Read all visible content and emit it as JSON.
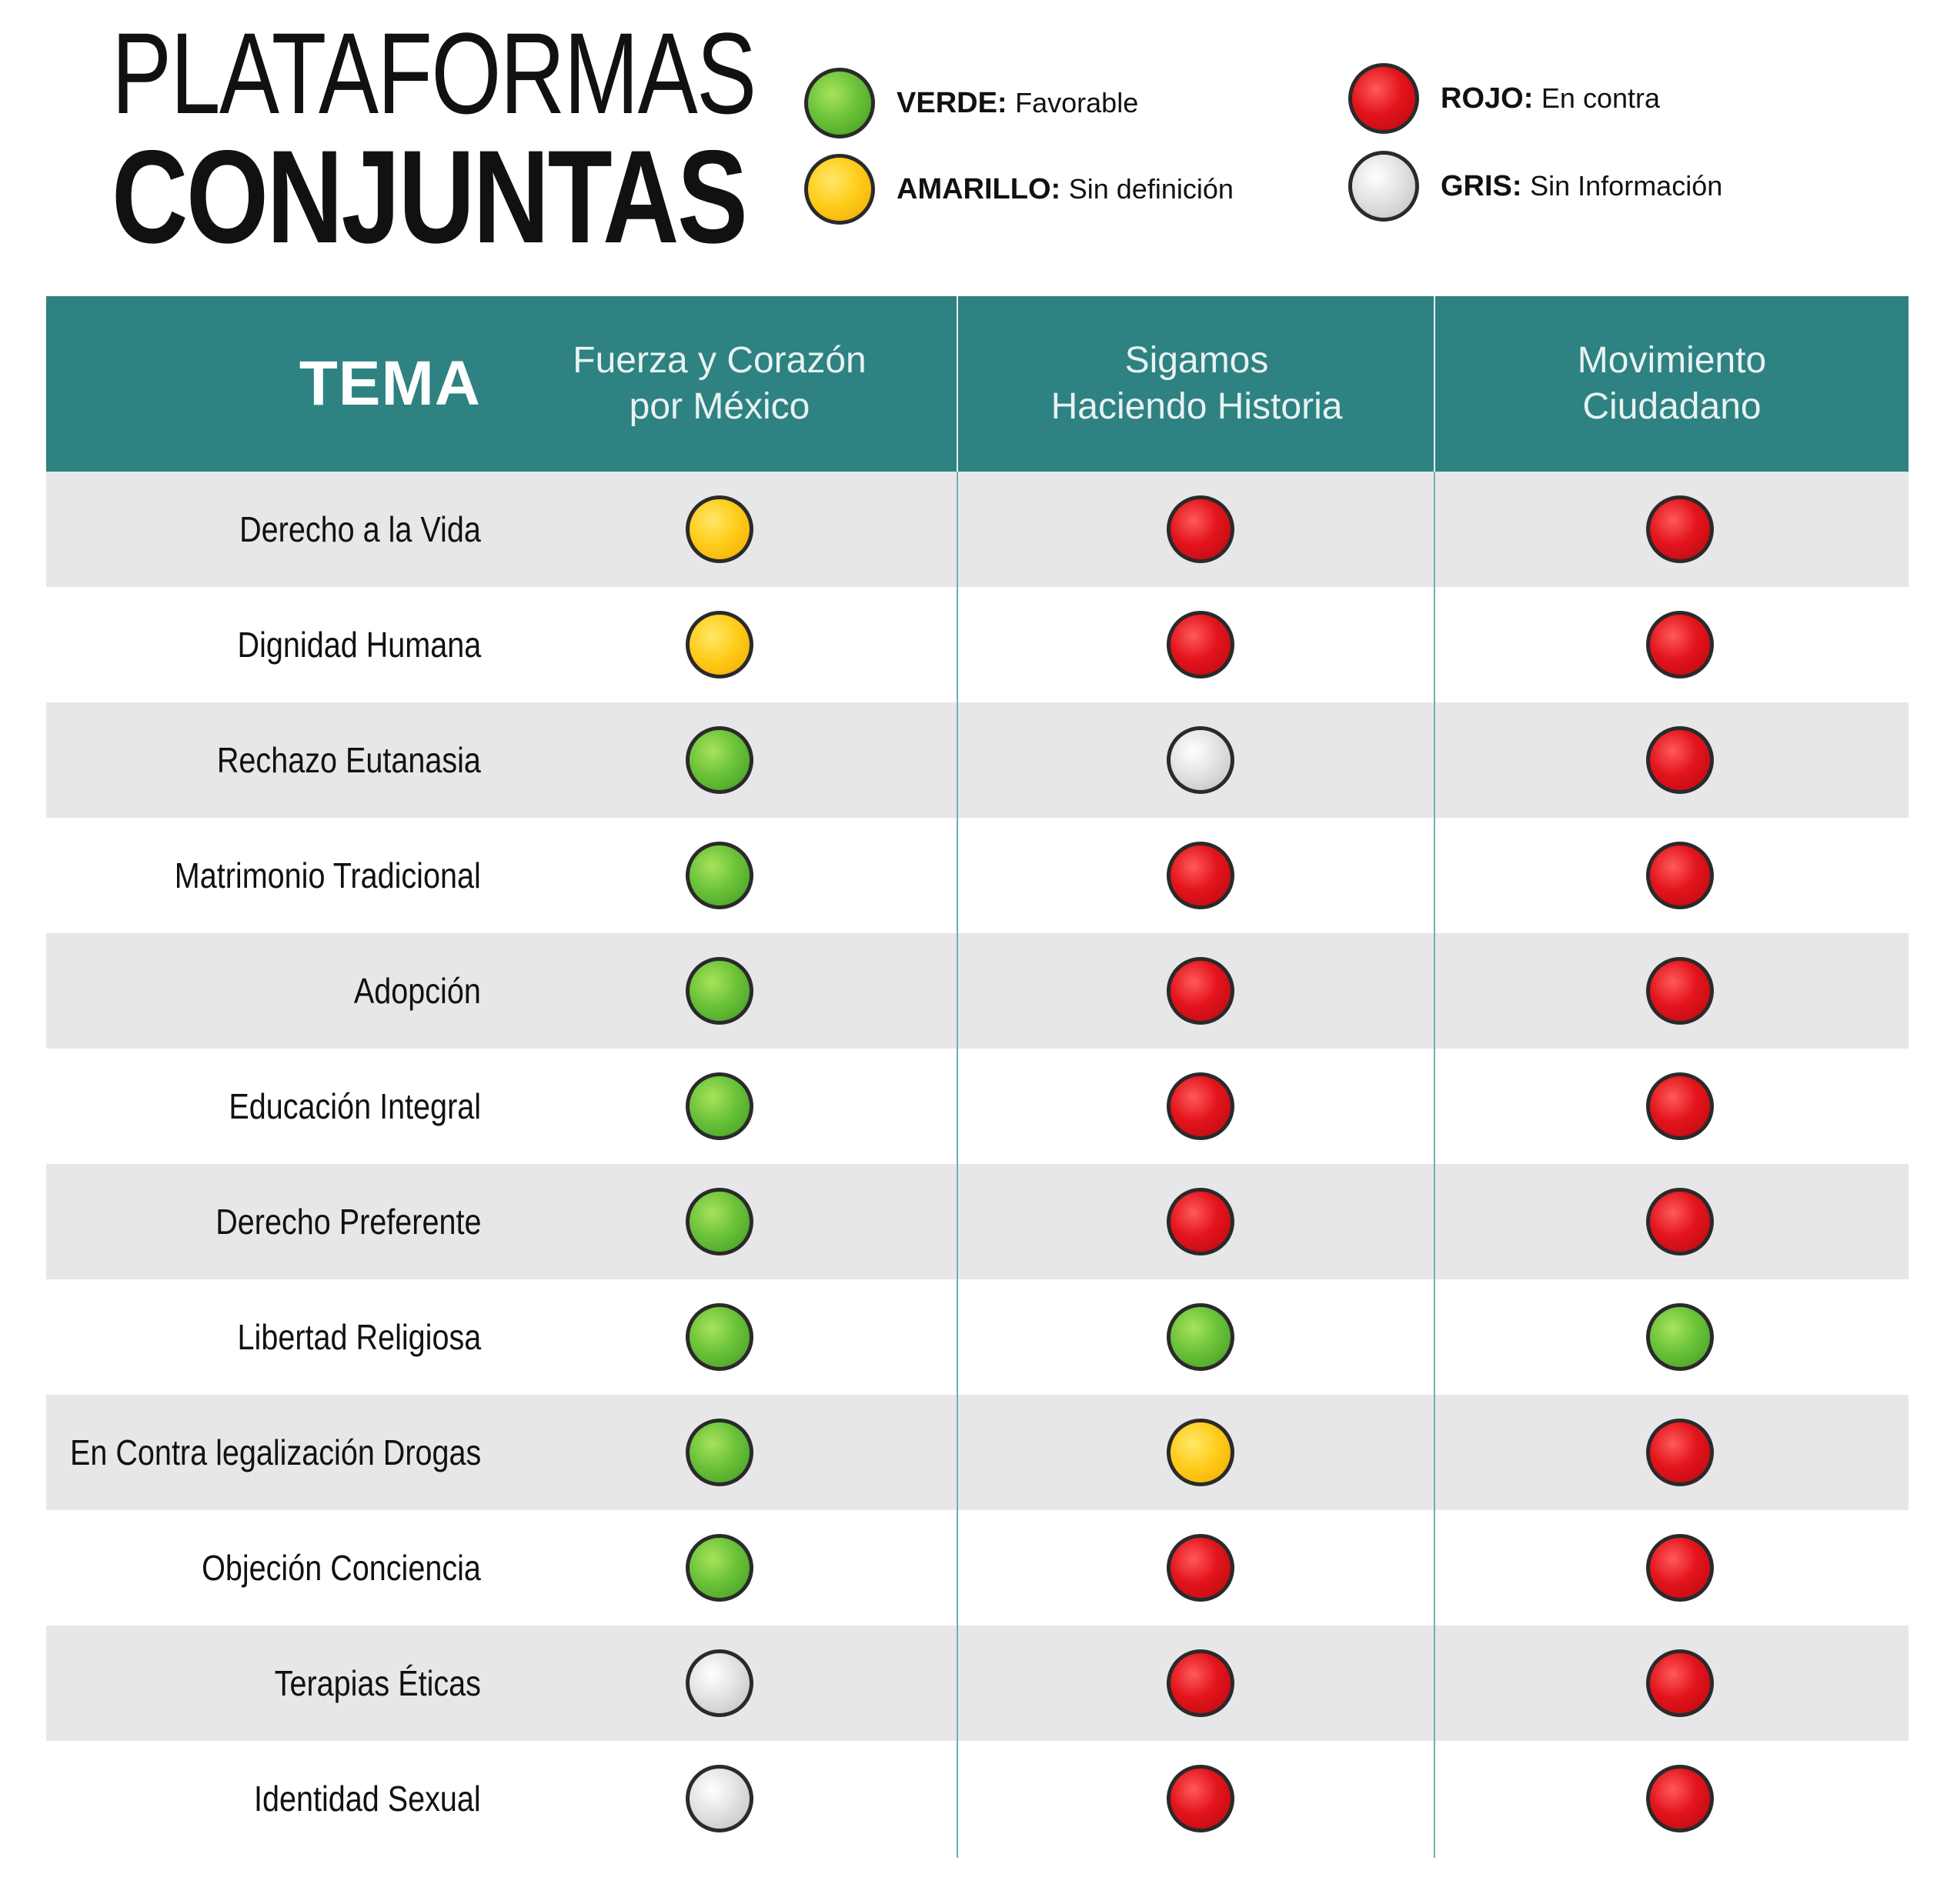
{
  "title": {
    "line1": "PLATAFORMAS",
    "line2": "CONJUNTAS"
  },
  "legend": [
    {
      "color": "green",
      "key": "VERDE:",
      "desc": "Favorable"
    },
    {
      "color": "yellow",
      "key": "AMARILLO:",
      "desc": "Sin definición"
    },
    {
      "color": "red",
      "key": "ROJO:",
      "desc": "En contra"
    },
    {
      "color": "gray",
      "key": "GRIS:",
      "desc": "Sin Información"
    }
  ],
  "table": {
    "tema_header": "TEMA",
    "columns": [
      {
        "line1": "Fuerza y Corazón",
        "line2": "por México"
      },
      {
        "line1": "Sigamos",
        "line2": "Haciendo Historia"
      },
      {
        "line1": "Movimiento",
        "line2": "Ciudadano"
      }
    ],
    "rows": [
      {
        "topic": "Derecho a la Vida",
        "status": [
          "yellow",
          "red",
          "red"
        ]
      },
      {
        "topic": "Dignidad Humana",
        "status": [
          "yellow",
          "red",
          "red"
        ]
      },
      {
        "topic": "Rechazo Eutanasia",
        "status": [
          "green",
          "gray",
          "red"
        ]
      },
      {
        "topic": "Matrimonio Tradicional",
        "status": [
          "green",
          "red",
          "red"
        ]
      },
      {
        "topic": "Adopción",
        "status": [
          "green",
          "red",
          "red"
        ]
      },
      {
        "topic": "Educación Integral",
        "status": [
          "green",
          "red",
          "red"
        ]
      },
      {
        "topic": "Derecho Preferente",
        "status": [
          "green",
          "red",
          "red"
        ]
      },
      {
        "topic": "Libertad Religiosa",
        "status": [
          "green",
          "green",
          "green"
        ]
      },
      {
        "topic": "En Contra legalización Drogas",
        "status": [
          "green",
          "yellow",
          "red"
        ]
      },
      {
        "topic": "Objeción Conciencia",
        "status": [
          "green",
          "red",
          "red"
        ]
      },
      {
        "topic": "Terapias Éticas",
        "status": [
          "gray",
          "red",
          "red"
        ]
      },
      {
        "topic": "Identidad Sexual",
        "status": [
          "gray",
          "red",
          "red"
        ]
      }
    ]
  },
  "colors": {
    "header": "#2e8281",
    "row_shade": "#e7e7e9",
    "green": "#6cc33a",
    "yellow": "#ffcd1c",
    "red": "#e3141c",
    "gray": "#d9d9d9"
  }
}
